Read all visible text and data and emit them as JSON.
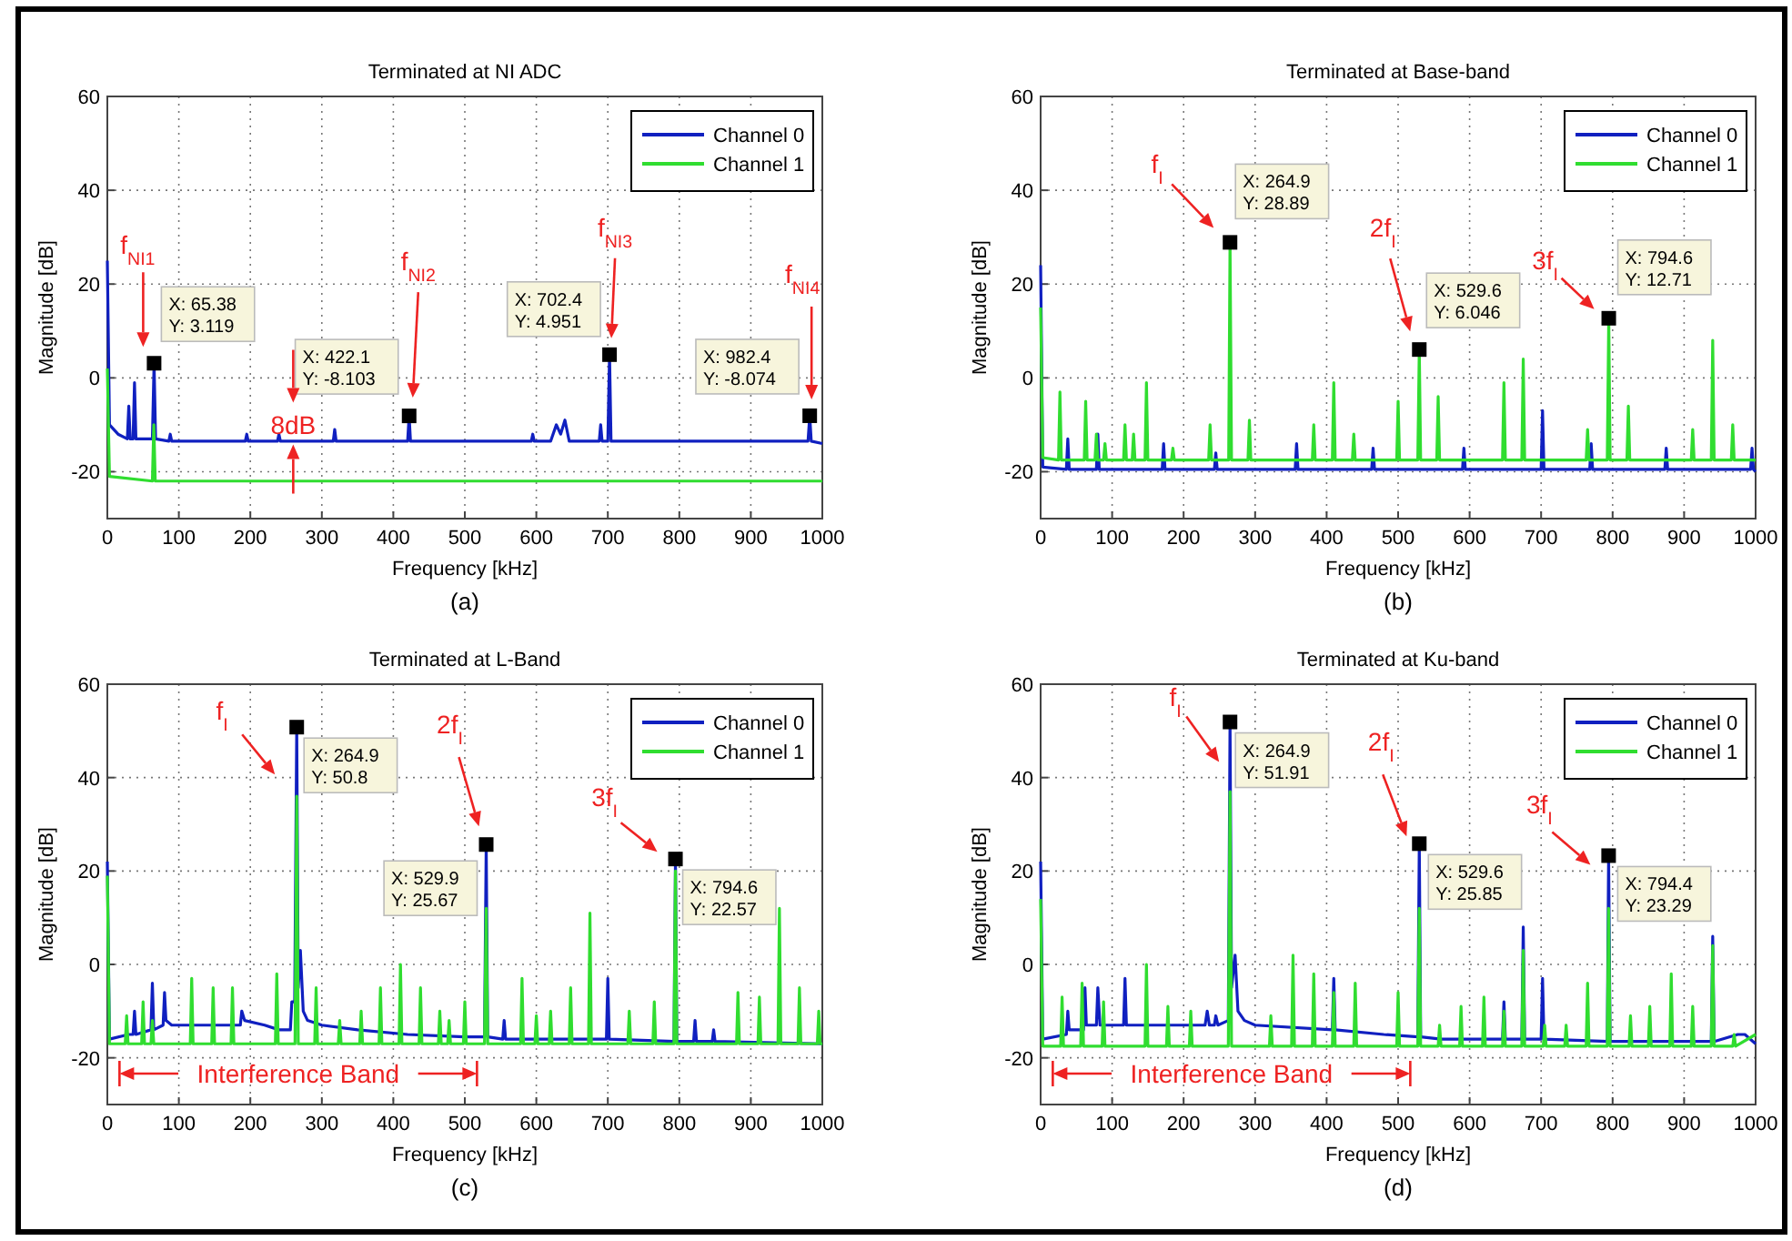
{
  "chart_data": [
    {
      "type": "line",
      "title": "Terminated at NI ADC",
      "xlabel": "Frequency [kHz]",
      "ylabel": "Magnitude [dB]",
      "xlim": [
        0,
        1000
      ],
      "xticks": [
        0,
        100,
        200,
        300,
        400,
        500,
        600,
        700,
        800,
        900,
        1000
      ],
      "ylim": [
        -30,
        60
      ],
      "yticks": [
        -20,
        0,
        20,
        40,
        60
      ],
      "grid": true,
      "legend": "top right",
      "series": [
        {
          "name": "Channel 0",
          "color": "#1020c0",
          "x": [
            0,
            3,
            15,
            28,
            30,
            32,
            36,
            38,
            40,
            63,
            65.38,
            67.5,
            86,
            88,
            90,
            193,
            195,
            197,
            238,
            240,
            242,
            316,
            318,
            320,
            420,
            422.1,
            424,
            593,
            595,
            597,
            620,
            628,
            634,
            640,
            646,
            688,
            690,
            692,
            700,
            702.4,
            704.5,
            980,
            982.4,
            984.5,
            1000
          ],
          "values": [
            25,
            -10,
            -12,
            -13,
            -6,
            -13,
            -13,
            -1,
            -13,
            -13,
            3.119,
            -13,
            -13.5,
            -12,
            -13.5,
            -13.5,
            -12,
            -13.5,
            -13.5,
            -12,
            -13.5,
            -13.5,
            -11,
            -13.5,
            -13.5,
            -8.103,
            -13.5,
            -13.5,
            -12,
            -13.5,
            -13.5,
            -10,
            -12,
            -9,
            -13.5,
            -13.5,
            -10,
            -13.5,
            -13.5,
            4.951,
            -13.5,
            -13.5,
            -8.074,
            -13.5,
            -14
          ]
        },
        {
          "name": "Channel 1",
          "color": "#30dd30",
          "x": [
            0,
            3,
            63,
            65,
            67,
            1000
          ],
          "values": [
            2,
            -21,
            -22,
            -10,
            -22,
            -22
          ]
        }
      ],
      "annotations": [
        {
          "text": "X: 65.38\nY: 3.119",
          "x": 65.38,
          "y": 3.119
        },
        {
          "text": "X: 422.1\nY: -8.103",
          "x": 422.1,
          "y": -8.103
        },
        {
          "text": "X: 702.4\nY: 4.951",
          "x": 702.4,
          "y": 4.951
        },
        {
          "text": "X: 982.4\nY: -8.074",
          "x": 982.4,
          "y": -8.074
        },
        "f$_{NI1}$",
        "f$_{NI2}$",
        "f$_{NI3}$",
        "f$_{NI4}$",
        "8dB",
        "(a)"
      ]
    },
    {
      "type": "line",
      "title": "Terminated at Base-band",
      "xlabel": "Frequency [kHz]",
      "ylabel": "Magnitude [dB]",
      "xlim": [
        0,
        1000
      ],
      "xticks": [
        0,
        100,
        200,
        300,
        400,
        500,
        600,
        700,
        800,
        900,
        1000
      ],
      "ylim": [
        -30,
        60
      ],
      "yticks": [
        -20,
        0,
        20,
        40,
        60
      ],
      "grid": true,
      "legend": "top right",
      "series": [
        {
          "name": "Channel 0",
          "color": "#1020c0",
          "x": [
            0,
            3,
            36,
            38,
            40,
            78,
            80,
            82,
            170,
            172,
            174,
            243,
            245,
            247,
            356,
            358,
            360,
            463,
            465,
            467,
            590,
            592,
            594,
            700,
            702,
            704,
            768,
            770,
            772,
            873,
            875,
            877,
            993,
            995,
            997,
            1000
          ],
          "values": [
            24,
            -19,
            -19.5,
            -13,
            -19.5,
            -19.5,
            -12,
            -19.5,
            -19.5,
            -14,
            -19.5,
            -19.5,
            -16,
            -19.5,
            -19.5,
            -14,
            -19.5,
            -19.5,
            -15,
            -19.5,
            -19.5,
            -15,
            -19.5,
            -19.5,
            -7,
            -19.5,
            -19.5,
            -14,
            -19.5,
            -19.5,
            -15,
            -19.5,
            -19.5,
            -15,
            -19.5,
            -20
          ]
        },
        {
          "name": "Channel 1",
          "color": "#30dd30",
          "x": [
            0,
            3,
            25,
            27,
            29,
            61,
            63,
            65,
            76,
            78,
            80,
            88,
            90,
            92,
            116,
            118,
            120,
            128,
            130,
            132,
            146,
            148,
            150,
            183,
            185,
            187,
            235,
            237,
            239,
            263,
            264.9,
            267,
            290,
            292,
            294,
            380,
            382,
            384,
            408,
            410,
            412,
            436,
            438,
            440,
            498,
            500,
            502,
            527.5,
            529.6,
            531.5,
            554,
            556,
            558,
            646,
            648,
            650,
            673,
            675,
            677,
            763,
            765,
            767,
            792.5,
            794.6,
            796.5,
            820,
            822,
            824,
            910,
            912,
            914,
            938,
            940,
            942,
            966,
            968,
            970,
            1000
          ],
          "values": [
            15,
            -17,
            -17.5,
            -3,
            -17.5,
            -17.5,
            -5,
            -17.5,
            -17.5,
            -12,
            -17.5,
            -17.5,
            -14,
            -17.5,
            -17.5,
            -10,
            -17.5,
            -17.5,
            -12,
            -17.5,
            -17.5,
            -1,
            -17.5,
            -17.5,
            -15,
            -17.5,
            -17.5,
            -10,
            -17.5,
            -17.5,
            28.89,
            -17.5,
            -17.5,
            -9,
            -17.5,
            -17.5,
            -10,
            -17.5,
            -17.5,
            -1,
            -17.5,
            -17.5,
            -12,
            -17.5,
            -17.5,
            -5,
            -17.5,
            -17.5,
            6.046,
            -17.5,
            -17.5,
            -4,
            -17.5,
            -17.5,
            -1,
            -17.5,
            -17.5,
            4,
            -17.5,
            -17.5,
            -11,
            -17.5,
            -17.5,
            12.71,
            -17.5,
            -17.5,
            -6,
            -17.5,
            -17.5,
            -11,
            -17.5,
            -17.5,
            8,
            -17.5,
            -17.5,
            -10,
            -17.5,
            -17.5
          ]
        }
      ],
      "annotations": [
        {
          "text": "X: 264.9\nY: 28.89",
          "x": 264.9,
          "y": 28.89
        },
        {
          "text": "X: 529.6\nY: 6.046",
          "x": 529.6,
          "y": 6.046
        },
        {
          "text": "X: 794.6\nY: 12.71",
          "x": 794.6,
          "y": 12.71
        },
        "f$_{I}$",
        "2f$_{I}$",
        "3f$_{I}$",
        "(b)"
      ]
    },
    {
      "type": "line",
      "title": "Terminated at L-Band",
      "xlabel": "Frequency [kHz]",
      "ylabel": "Magnitude [dB]",
      "xlim": [
        0,
        1000
      ],
      "xticks": [
        0,
        100,
        200,
        300,
        400,
        500,
        600,
        700,
        800,
        900,
        1000
      ],
      "ylim": [
        -30,
        60
      ],
      "yticks": [
        -20,
        0,
        20,
        40,
        60
      ],
      "grid": true,
      "legend": "top right",
      "series": [
        {
          "name": "Channel 0",
          "color": "#1020c0",
          "x": [
            0,
            3,
            30,
            36,
            38,
            40,
            61,
            63,
            65,
            78,
            80,
            82,
            90,
            146,
            148,
            150,
            186,
            188,
            192,
            220,
            240,
            256,
            258,
            262,
            264.9,
            267,
            270,
            274,
            280,
            300,
            350,
            420,
            500,
            527.5,
            529.9,
            532,
            553,
            555,
            557,
            698,
            700,
            702,
            792.5,
            794.6,
            796.5,
            820,
            822,
            824,
            846,
            848,
            850,
            1000
          ],
          "values": [
            22,
            -16,
            -15,
            -15,
            -10,
            -15,
            -14,
            -4,
            -14,
            -13,
            -6,
            -12,
            -13,
            -13,
            -13,
            -13,
            -13,
            -10,
            -12,
            -13,
            -14,
            -14,
            -8,
            -8,
            50.8,
            -5,
            3,
            -10,
            -12,
            -13,
            -14,
            -15,
            -15.5,
            -15.5,
            25.67,
            -15.5,
            -16,
            -12,
            -16,
            -16,
            -3,
            -16,
            -16.5,
            22.57,
            -16.5,
            -16.5,
            -12,
            -16.5,
            -16.5,
            -14,
            -16.5,
            -17
          ]
        },
        {
          "name": "Channel 1",
          "color": "#30dd30",
          "x": [
            0,
            3,
            25,
            27,
            29,
            48,
            50,
            52,
            61,
            63,
            65,
            116,
            118,
            120,
            146,
            148,
            150,
            173,
            175,
            177,
            235,
            237,
            239,
            262.5,
            264.9,
            267,
            290,
            292,
            294,
            323,
            325,
            327,
            353,
            355,
            357,
            380,
            382,
            384,
            408,
            410,
            412,
            436,
            438,
            440,
            463,
            465,
            467,
            476,
            478,
            480,
            498,
            500,
            502,
            527.5,
            529.9,
            532,
            578,
            580,
            582,
            598,
            600,
            602,
            618,
            620,
            622,
            646,
            648,
            650,
            673,
            675,
            677,
            728,
            730,
            732,
            763,
            765,
            767,
            792.5,
            794.6,
            796.5,
            880,
            882,
            884,
            910,
            912,
            914,
            938,
            940,
            942,
            966,
            968,
            970,
            993,
            995,
            997,
            1000
          ],
          "values": [
            19,
            -17,
            -17,
            -11,
            -17,
            -17,
            -8,
            -17,
            -17,
            -12,
            -17,
            -17,
            -3,
            -17,
            -17,
            -5,
            -17,
            -17,
            -5,
            -17,
            -17,
            -2,
            -17,
            -17,
            36,
            -17,
            -17,
            -5,
            -17,
            -17,
            -12,
            -17,
            -17,
            -10,
            -17,
            -17,
            -5,
            -17,
            -17,
            0,
            -17,
            -17,
            -5,
            -17,
            -17,
            -10,
            -17,
            -17,
            -12,
            -17,
            -17,
            -8,
            -17,
            -17,
            12,
            -17,
            -17,
            -3,
            -17,
            -17,
            -11,
            -17,
            -17,
            -10,
            -17,
            -17,
            -5,
            -17,
            -17,
            11,
            -17,
            -17,
            -10,
            -17,
            -17,
            -8,
            -17,
            -17,
            20,
            -17,
            -17,
            -6,
            -17,
            -17,
            -7,
            -17,
            -17,
            12,
            -17,
            -17,
            -5,
            -17,
            -17,
            -10,
            -17,
            -17
          ]
        }
      ],
      "annotations": [
        {
          "text": "X: 264.9\nY: 50.8",
          "x": 264.9,
          "y": 50.8
        },
        {
          "text": "X: 529.9\nY: 25.67",
          "x": 529.9,
          "y": 25.67
        },
        {
          "text": "X: 794.6\nY: 22.57",
          "x": 794.6,
          "y": 22.57
        },
        "f$_{I}$",
        "2f$_{I}$",
        "3f$_{I}$",
        "Interference Band",
        "(c)"
      ]
    },
    {
      "type": "line",
      "title": "Terminated at Ku-band",
      "xlabel": "Frequency [kHz]",
      "ylabel": "Magnitude [dB]",
      "xlim": [
        0,
        1000
      ],
      "xticks": [
        0,
        100,
        200,
        300,
        400,
        500,
        600,
        700,
        800,
        900,
        1000
      ],
      "ylim": [
        -30,
        60
      ],
      "yticks": [
        -20,
        0,
        20,
        40,
        60
      ],
      "grid": true,
      "legend": "top right",
      "series": [
        {
          "name": "Channel 0",
          "color": "#1020c0",
          "x": [
            0,
            3,
            36,
            38,
            40,
            60,
            62,
            64,
            78,
            80,
            83,
            116,
            118,
            120,
            230,
            233,
            236,
            243,
            245,
            248,
            262.5,
            264.9,
            267,
            272,
            276,
            285,
            300,
            408,
            410,
            412,
            480,
            527.5,
            529.6,
            531.5,
            560,
            646,
            648,
            650,
            673,
            675,
            677,
            700,
            702,
            704,
            792.5,
            794.4,
            796.5,
            938,
            940,
            942,
            975,
            985,
            1000
          ],
          "values": [
            22,
            -16,
            -15,
            -10,
            -14,
            -14,
            -5,
            -13,
            -13,
            -5,
            -13,
            -13,
            -3,
            -13,
            -13,
            -10,
            -13,
            -13,
            -11,
            -13,
            -12,
            51.91,
            -5,
            2,
            -10,
            -12,
            -13,
            -14,
            -3,
            -14,
            -15,
            -15.5,
            25.85,
            -15.5,
            -16,
            -16,
            -8,
            -16,
            -16,
            8,
            -16,
            -16,
            -3,
            -16,
            -16.5,
            23.29,
            -16.5,
            -16.5,
            6,
            -16.5,
            -15,
            -15,
            -17
          ]
        },
        {
          "name": "Channel 1",
          "color": "#30dd30",
          "x": [
            0,
            3,
            28,
            30,
            32,
            56,
            58,
            60,
            86,
            88,
            90,
            146,
            148,
            150,
            176,
            178,
            180,
            208,
            210,
            212,
            262.5,
            264.9,
            267,
            320,
            322,
            324,
            351,
            353,
            355,
            380,
            382,
            384,
            408,
            410,
            412,
            438,
            440,
            442,
            498,
            500,
            502,
            527.5,
            529.6,
            531.5,
            556,
            558,
            560,
            586,
            588,
            590,
            618,
            620,
            622,
            646,
            648,
            650,
            673,
            675,
            677,
            703,
            705,
            707,
            733,
            735,
            737,
            763,
            765,
            767,
            792.5,
            794.4,
            796.5,
            823,
            825,
            827,
            850,
            852,
            854,
            880,
            882,
            884,
            910,
            912,
            914,
            938,
            940,
            942,
            968,
            970,
            972,
            1000
          ],
          "values": [
            14,
            -17.5,
            -17.5,
            -7,
            -17.5,
            -17.5,
            -4,
            -17.5,
            -17.5,
            -8,
            -17.5,
            -17.5,
            0,
            -17.5,
            -17.5,
            -9,
            -17.5,
            -17.5,
            -10,
            -17.5,
            -17.5,
            37,
            -17.5,
            -17.5,
            -11,
            -17.5,
            -17.5,
            2,
            -17.5,
            -17.5,
            -2,
            -17.5,
            -17.5,
            -6,
            -17.5,
            -17.5,
            -4,
            -17.5,
            -17.5,
            -6,
            -17.5,
            -17.5,
            12,
            -17.5,
            -17.5,
            -13,
            -17.5,
            -17.5,
            -9,
            -17.5,
            -17.5,
            -7,
            -17.5,
            -17.5,
            -10,
            -17.5,
            -17.5,
            3,
            -17.5,
            -17.5,
            -13,
            -17.5,
            -17.5,
            -13,
            -17.5,
            -17.5,
            -4,
            -17.5,
            -17.5,
            12,
            -17.5,
            -17.5,
            -11,
            -17.5,
            -17.5,
            -9,
            -17.5,
            -17.5,
            -2,
            -17.5,
            -17.5,
            -9,
            -17.5,
            -17.5,
            4,
            -17.5,
            -17.5,
            -15,
            -17.5,
            -15
          ]
        }
      ],
      "annotations": [
        {
          "text": "X: 264.9\nY: 51.91",
          "x": 264.9,
          "y": 51.91
        },
        {
          "text": "X: 529.6\nY: 25.85",
          "x": 529.6,
          "y": 25.85
        },
        {
          "text": "X: 794.4\nY: 23.29",
          "x": 794.4,
          "y": 23.29
        },
        "f$_{I}$",
        "2f$_{I}$",
        "3f$_{I}$",
        "Interference Band",
        "(d)"
      ]
    }
  ]
}
